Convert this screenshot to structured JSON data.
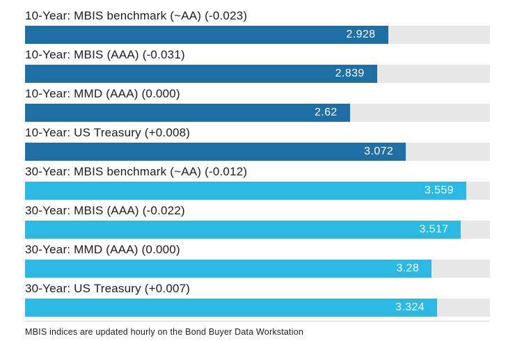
{
  "chart_data": {
    "type": "bar",
    "orientation": "horizontal",
    "title": "",
    "xlabel": "",
    "ylabel": "",
    "xlim": [
      0,
      3.75
    ],
    "grid": false,
    "legend": false,
    "bars": [
      {
        "label": "10-Year: MBIS benchmark (~AA) (-0.023)",
        "value": 2.928,
        "display": "2.928",
        "group": "10-year"
      },
      {
        "label": "10-Year: MBIS (AAA) (-0.031)",
        "value": 2.839,
        "display": "2.839",
        "group": "10-year"
      },
      {
        "label": "10-Year: MMD (AAA) (0.000)",
        "value": 2.62,
        "display": "2.62",
        "group": "10-year"
      },
      {
        "label": "10-Year: US Treasury (+0.008)",
        "value": 3.072,
        "display": "3.072",
        "group": "10-year"
      },
      {
        "label": "30-Year: MBIS benchmark (~AA) (-0.012)",
        "value": 3.559,
        "display": "3.559",
        "group": "30-year"
      },
      {
        "label": "30-Year: MBIS (AAA) (-0.022)",
        "value": 3.517,
        "display": "3.517",
        "group": "30-year"
      },
      {
        "label": "30-Year: MMD (AAA) (0.000)",
        "value": 3.28,
        "display": "3.28",
        "group": "30-year"
      },
      {
        "label": "30-Year: US Treasury (+0.007)",
        "value": 3.324,
        "display": "3.324",
        "group": "30-year"
      }
    ],
    "colors": {
      "10-year": "#1f6fa5",
      "30-year": "#2cb9e5",
      "track": "#e7e7e7",
      "value_text": "#ffffff"
    },
    "footnote": "MBIS indices are updated hourly on the Bond Buyer Data Workstation"
  }
}
